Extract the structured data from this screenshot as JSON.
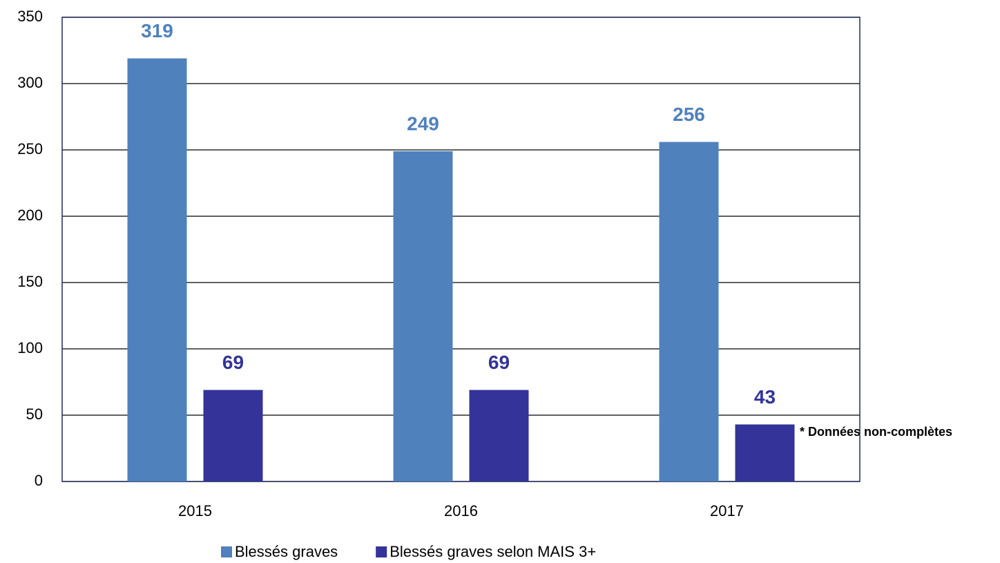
{
  "chart_data": {
    "type": "bar",
    "categories": [
      "2015",
      "2016",
      "2017"
    ],
    "series": [
      {
        "name": "Blessés graves",
        "color": "#4f81bd",
        "values": [
          319,
          249,
          256
        ]
      },
      {
        "name": "Blessés graves selon MAIS 3+",
        "color": "#333399",
        "values": [
          69,
          69,
          43
        ]
      }
    ],
    "ylim": [
      0,
      350
    ],
    "yticks": [
      0,
      50,
      100,
      150,
      200,
      250,
      300,
      350
    ],
    "grid": true,
    "annotation": "* Données non-complètes",
    "legend": "bottom"
  }
}
